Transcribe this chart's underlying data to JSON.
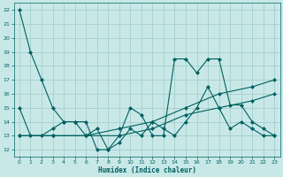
{
  "xlabel": "Humidex (Indice chaleur)",
  "ylabel": "",
  "xlim": [
    -0.5,
    23.5
  ],
  "ylim": [
    11.5,
    22.5
  ],
  "yticks": [
    12,
    13,
    14,
    15,
    16,
    17,
    18,
    19,
    20,
    21,
    22
  ],
  "xticks": [
    0,
    1,
    2,
    3,
    4,
    5,
    6,
    7,
    8,
    9,
    10,
    11,
    12,
    13,
    14,
    15,
    16,
    17,
    18,
    19,
    20,
    21,
    22,
    23
  ],
  "background_color": "#c8e8e8",
  "grid_color": "#a0c8c8",
  "line_color": "#006060",
  "lines": [
    {
      "x": [
        0,
        1,
        2,
        3,
        4,
        5,
        6,
        7,
        8,
        9,
        10,
        11,
        12,
        13,
        14,
        15,
        16,
        17,
        18,
        19,
        20,
        21,
        22,
        23
      ],
      "y": [
        22,
        19,
        17,
        15,
        14,
        14,
        14,
        12,
        12,
        13,
        15,
        14.5,
        13,
        13,
        18.5,
        18.5,
        17.5,
        18.5,
        18.5,
        15.2,
        15.2,
        14,
        13.5,
        13
      ],
      "marker": "D",
      "markersize": 2.0,
      "linewidth": 0.8,
      "color": "#006060"
    },
    {
      "x": [
        0,
        1,
        2,
        3,
        4,
        5,
        6,
        7,
        8,
        9,
        10,
        11,
        12,
        13,
        14,
        15,
        16,
        17,
        18,
        19,
        20,
        21,
        22,
        23
      ],
      "y": [
        15,
        13,
        13,
        13.5,
        14,
        14,
        13,
        13.5,
        12,
        12.5,
        13.5,
        13,
        14,
        13.5,
        13,
        14,
        15,
        16.5,
        15,
        13.5,
        14,
        13.5,
        13,
        13
      ],
      "marker": "D",
      "markersize": 2.0,
      "linewidth": 0.8,
      "color": "#006060"
    },
    {
      "x": [
        0,
        3,
        6,
        9,
        12,
        15,
        18,
        21,
        23
      ],
      "y": [
        13,
        13,
        13,
        13.5,
        14,
        15,
        16,
        16.5,
        17
      ],
      "marker": "D",
      "markersize": 2.0,
      "linewidth": 0.8,
      "color": "#006060"
    },
    {
      "x": [
        0,
        3,
        6,
        9,
        12,
        15,
        18,
        21,
        23
      ],
      "y": [
        13,
        13,
        13,
        13,
        13.5,
        14.5,
        15,
        15.5,
        16
      ],
      "marker": "D",
      "markersize": 2.0,
      "linewidth": 0.8,
      "color": "#006060"
    }
  ]
}
